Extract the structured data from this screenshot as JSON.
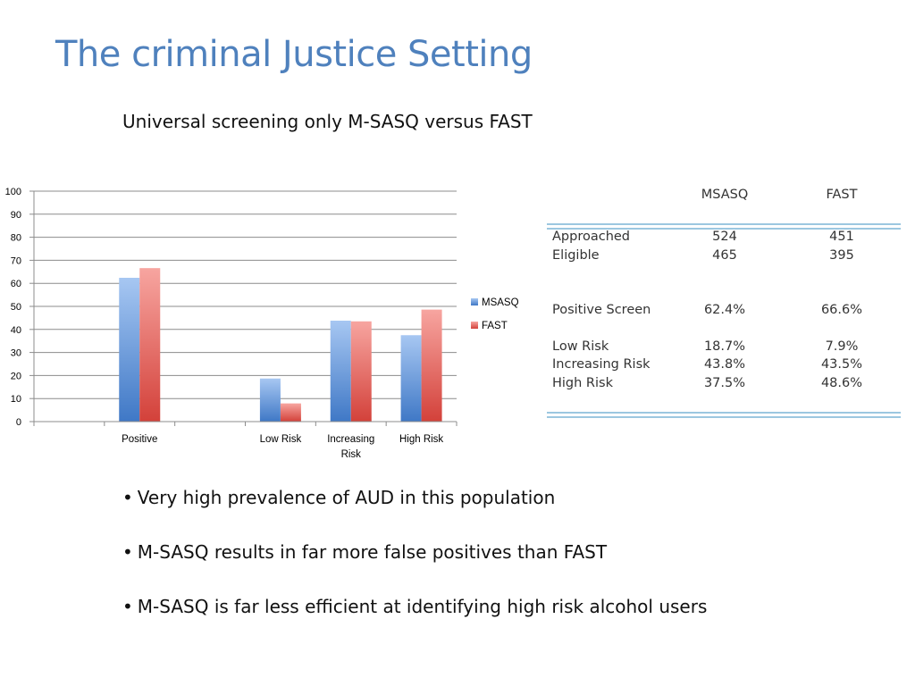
{
  "slide": {
    "title": "The criminal Justice Setting",
    "subtitle": "Universal screening only M-SASQ versus FAST"
  },
  "colors": {
    "title": "#4f81bd",
    "msasq": "#4a7ec4",
    "fast": "#d9473f",
    "table_rule": "#9cc7e0"
  },
  "chart_data": {
    "type": "bar",
    "categories": [
      "",
      "Positive",
      "",
      "Low Risk",
      "Increasing Risk",
      "High Risk"
    ],
    "series": [
      {
        "name": "MSASQ",
        "values": [
          null,
          62.4,
          null,
          18.7,
          43.8,
          37.5
        ]
      },
      {
        "name": "FAST",
        "values": [
          null,
          66.6,
          null,
          7.9,
          43.5,
          48.6
        ]
      }
    ],
    "ylim": [
      0,
      100
    ],
    "yticks": [
      "0",
      "10",
      "20",
      "30",
      "40",
      "50",
      "60",
      "70",
      "80",
      "90",
      "100"
    ],
    "grid": true,
    "legend": "right"
  },
  "table": {
    "headers": [
      "MSASQ",
      "FAST"
    ],
    "rows": [
      {
        "label": "Approached",
        "msasq": "524",
        "fast": "451"
      },
      {
        "label": "Eligible",
        "msasq": "465",
        "fast": "395"
      },
      {
        "label": "Positive Screen",
        "msasq": "62.4%",
        "fast": "66.6%"
      },
      {
        "label": "Low Risk",
        "msasq": "18.7%",
        "fast": "7.9%"
      },
      {
        "label": "Increasing Risk",
        "msasq": "43.8%",
        "fast": "43.5%"
      },
      {
        "label": "High Risk",
        "msasq": "37.5%",
        "fast": "48.6%"
      }
    ]
  },
  "bullets": [
    "Very high prevalence of AUD in this population",
    "M-SASQ results in far more false positives than FAST",
    "M-SASQ is far less efficient at identifying high risk alcohol users"
  ]
}
